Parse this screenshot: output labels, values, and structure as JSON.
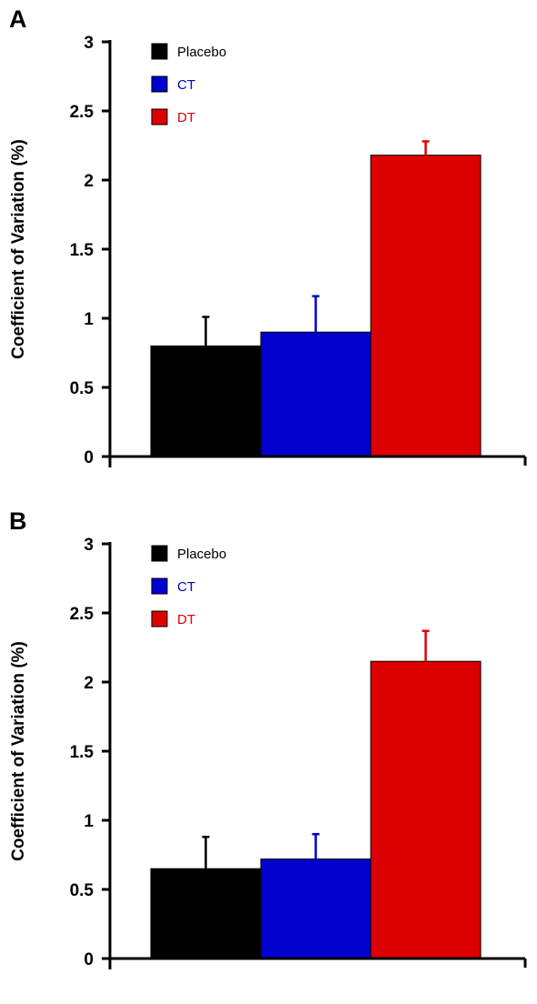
{
  "chart_data": [
    {
      "type": "bar",
      "panel_label": "A",
      "categories": [
        "Placebo",
        "CT",
        "DT"
      ],
      "values": [
        0.8,
        0.9,
        2.18
      ],
      "error_upper": [
        0.21,
        0.26,
        0.1
      ],
      "colors": [
        "#000000",
        "#0000cc",
        "#dd0000"
      ],
      "legend": [
        "Placebo",
        "CT",
        "DT"
      ],
      "legend_position": "top-left",
      "ylabel": "Coefficient of Variation (%)",
      "xlabel": "",
      "ylim": [
        0,
        3
      ],
      "yticks": [
        "0",
        "0.5",
        "1",
        "1.5",
        "2",
        "2.5",
        "3"
      ],
      "grid": false
    },
    {
      "type": "bar",
      "panel_label": "B",
      "categories": [
        "Placebo",
        "CT",
        "DT"
      ],
      "values": [
        0.65,
        0.72,
        2.15
      ],
      "error_upper": [
        0.23,
        0.18,
        0.22
      ],
      "colors": [
        "#000000",
        "#0000cc",
        "#dd0000"
      ],
      "legend": [
        "Placebo",
        "CT",
        "DT"
      ],
      "legend_position": "top-left",
      "ylabel": "Coefficient of Variation (%)",
      "xlabel": "",
      "ylim": [
        0,
        3
      ],
      "yticks": [
        "0",
        "0.5",
        "1",
        "1.5",
        "2",
        "2.5",
        "3"
      ],
      "grid": false
    }
  ]
}
